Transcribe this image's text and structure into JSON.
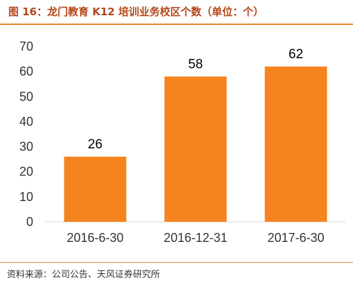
{
  "title": "图 16：龙门教育 K12 培训业务校区个数（单位：个）",
  "source": "资料来源：公司公告、天风证券研究所",
  "colors": {
    "bar": "#f5841f",
    "title": "#b4461a",
    "rule": "#e8832a"
  },
  "chart_data": {
    "type": "bar",
    "categories": [
      "2016-6-30",
      "2016-12-31",
      "2017-6-30"
    ],
    "values": [
      26,
      58,
      62
    ],
    "title": "",
    "xlabel": "",
    "ylabel": "",
    "ylim": [
      0,
      70
    ],
    "yticks": [
      0,
      10,
      20,
      30,
      40,
      50,
      60,
      70
    ],
    "grid": false,
    "legend": "none"
  }
}
